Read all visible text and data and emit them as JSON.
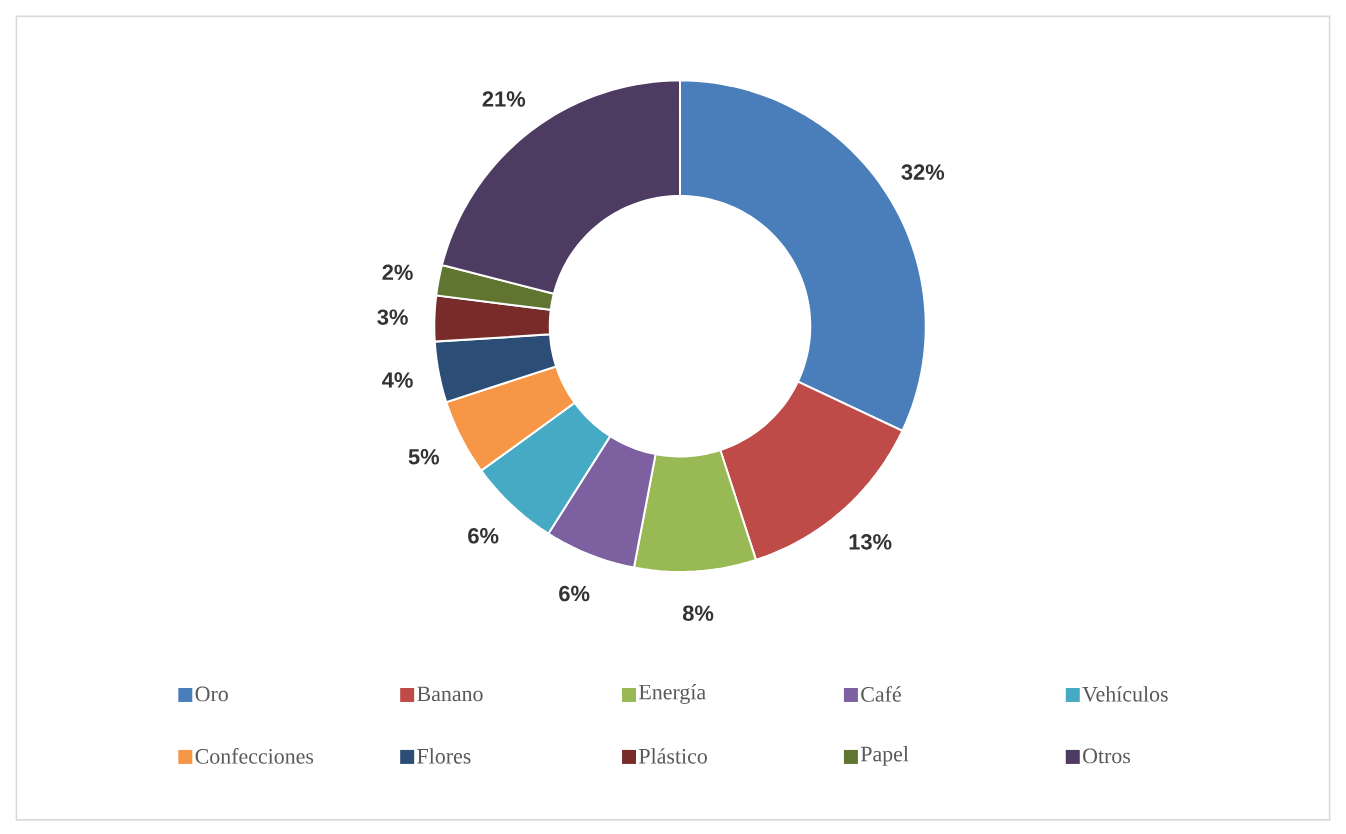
{
  "chart_data": {
    "type": "donut",
    "categories": [
      "Oro",
      "Banano",
      "Energía",
      "Café",
      "Vehículos",
      "Confecciones",
      "Flores",
      "Plástico",
      "Papel",
      "Otros"
    ],
    "values": [
      32,
      13,
      8,
      6,
      6,
      5,
      4,
      3,
      2,
      21
    ],
    "value_labels": [
      "32%",
      "13%",
      "8%",
      "6%",
      "6%",
      "5%",
      "4%",
      "3%",
      "2%",
      "21%"
    ],
    "colors": [
      "#4a7ebb",
      "#be4b48",
      "#98b954",
      "#7d60a0",
      "#46aac5",
      "#f79646",
      "#2c4d75",
      "#772c2a",
      "#5f7530",
      "#4d3b62"
    ],
    "legend": "bottom"
  }
}
